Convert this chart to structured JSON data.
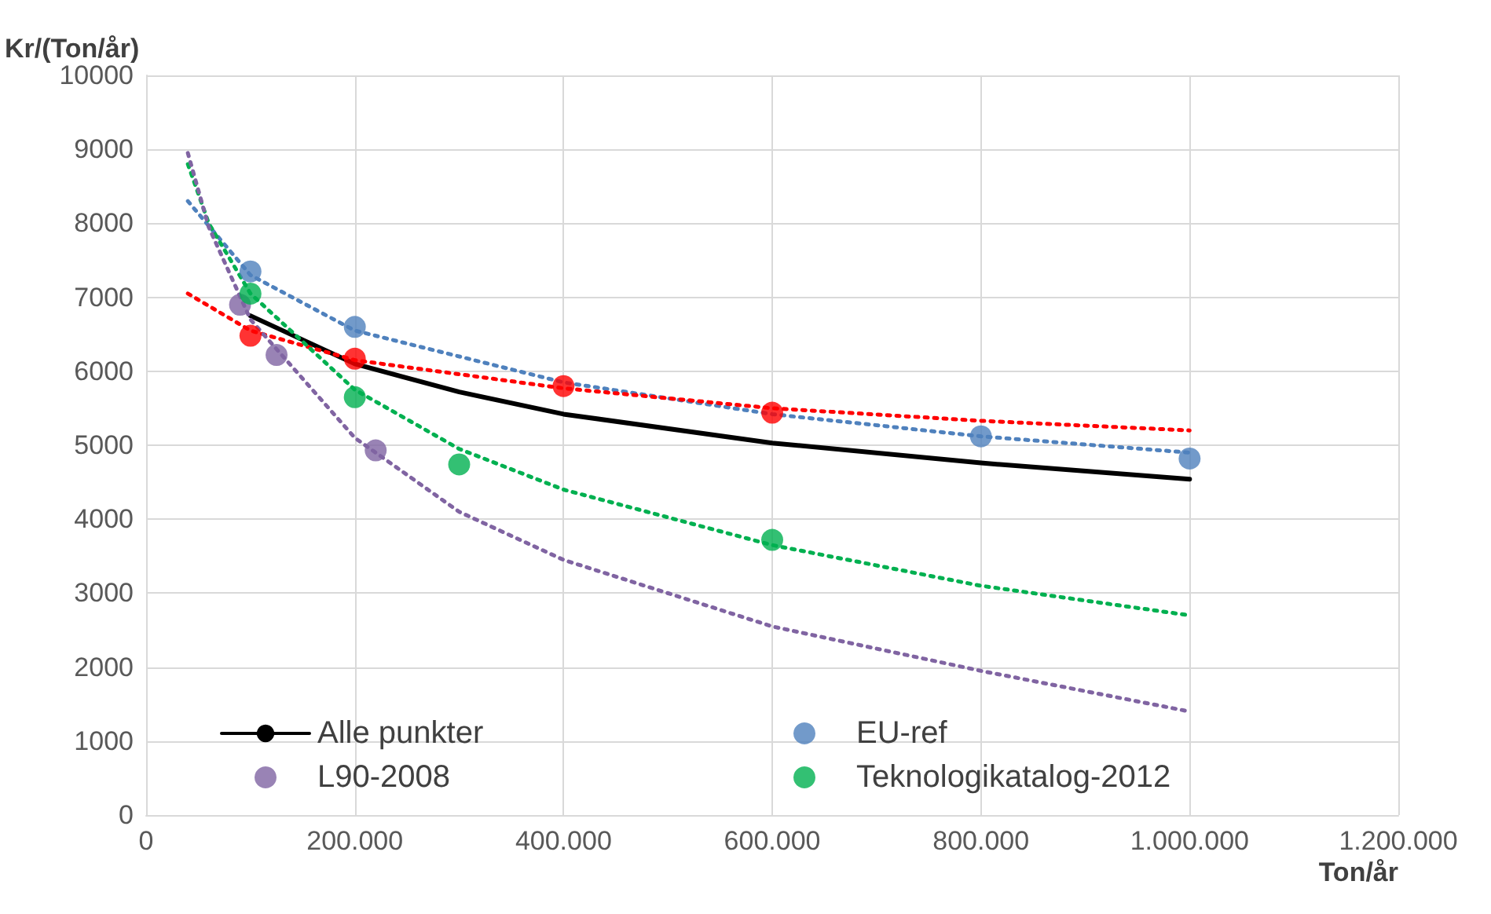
{
  "chart_data": {
    "type": "scatter",
    "ylabel": "Kr/(Ton/år)",
    "xlabel": "Ton/år",
    "xlim": [
      0,
      1200000
    ],
    "xticks": [
      0,
      {
        "value": 200000,
        "label": "200.000"
      },
      {
        "value": 400000,
        "label": "400.000"
      },
      {
        "value": 600000,
        "label": "600.000"
      },
      {
        "value": 800000,
        "label": "800.000"
      },
      {
        "value": 1000000,
        "label": "1.000.000"
      },
      {
        "value": 1200000,
        "label": "1.200.000"
      }
    ],
    "ylim": [
      0,
      10000
    ],
    "yticks": [
      0,
      1000,
      2000,
      3000,
      4000,
      5000,
      6000,
      7000,
      8000,
      9000,
      10000
    ],
    "grid": true,
    "legend": "bottom left",
    "series": [
      {
        "name": "Alle punkter",
        "type": "line",
        "color": "#000000",
        "marker": "none",
        "line_style": "solid",
        "x": [
          100000,
          200000,
          300000,
          400000,
          600000,
          800000,
          1000000
        ],
        "values": [
          6750,
          6100,
          5720,
          5420,
          5030,
          4760,
          4540
        ]
      },
      {
        "name": "EU-ref",
        "color": "#4f81bd",
        "marker": "circle",
        "x": [
          100000,
          200000,
          800000,
          1000000
        ],
        "values": [
          7350,
          6600,
          5120,
          4820
        ]
      },
      {
        "name": "L90-2008",
        "color": "#8064a2",
        "marker": "circle",
        "x": [
          90000,
          125000,
          220000
        ],
        "values": [
          6900,
          6220,
          4930
        ]
      },
      {
        "name": "Teknologikatalog-2012",
        "color": "#00b050",
        "marker": "circle",
        "x": [
          100000,
          200000,
          300000,
          600000
        ],
        "values": [
          7050,
          5650,
          4740,
          3720
        ]
      },
      {
        "color": "#ff0000",
        "marker": "circle",
        "x": [
          100000,
          200000,
          400000,
          600000
        ],
        "values": [
          6480,
          6170,
          5800,
          5440
        ]
      },
      {
        "type": "line",
        "color": "#4f81bd",
        "marker": "none",
        "line_style": "dotted",
        "x": [
          40000,
          100000,
          200000,
          400000,
          600000,
          800000,
          1000000
        ],
        "values": [
          8300,
          7300,
          6550,
          5850,
          5420,
          5120,
          4900
        ]
      },
      {
        "type": "line",
        "color": "#ff0000",
        "marker": "none",
        "line_style": "dotted",
        "x": [
          40000,
          100000,
          200000,
          400000,
          600000,
          800000,
          1000000
        ],
        "values": [
          7050,
          6550,
          6150,
          5770,
          5500,
          5330,
          5200
        ]
      },
      {
        "type": "line",
        "color": "#00b050",
        "marker": "none",
        "line_style": "dotted",
        "x": [
          40000,
          60000,
          100000,
          200000,
          300000,
          400000,
          600000,
          800000,
          1000000
        ],
        "values": [
          8800,
          8000,
          7050,
          5750,
          4950,
          4400,
          3650,
          3100,
          2700
        ]
      },
      {
        "type": "line",
        "color": "#8064a2",
        "marker": "none",
        "line_style": "dotted",
        "x": [
          40000,
          60000,
          100000,
          200000,
          300000,
          400000,
          600000,
          800000,
          1000000
        ],
        "values": [
          8950,
          7950,
          6700,
          5100,
          4100,
          3450,
          2550,
          1950,
          1400
        ]
      }
    ]
  }
}
